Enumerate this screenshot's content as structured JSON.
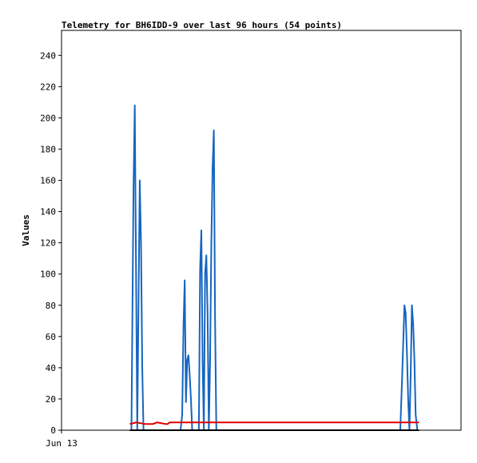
{
  "chart_data": {
    "type": "line",
    "title": "Telemetry for BH6IDD-9 over last 96 hours (54 points)",
    "xlabel": "",
    "ylabel": "Values",
    "x_tick_labels": [
      "Jun 13"
    ],
    "ylim": [
      0,
      256
    ],
    "yticks": [
      0,
      20,
      40,
      60,
      80,
      100,
      120,
      140,
      160,
      180,
      200,
      220,
      240
    ],
    "xlim": [
      0,
      96
    ],
    "grid": false,
    "legend": "none",
    "series": [
      {
        "color": "#1565c0",
        "x": [
          16.8,
          17.3,
          17.6,
          17.9,
          18.2,
          18.5,
          18.8,
          19.1,
          19.4,
          19.7,
          20.0,
          28.6,
          29.0,
          29.3,
          29.6,
          29.9,
          30.2,
          30.5,
          30.8,
          31.1,
          31.4,
          31.7,
          32.0,
          33.0,
          33.3,
          33.6,
          33.9,
          34.2,
          34.5,
          34.8,
          35.1,
          35.4,
          35.7,
          36.0,
          36.3,
          36.6,
          36.9,
          37.2,
          37.5,
          37.8,
          81.4,
          81.8,
          82.1,
          82.4,
          82.7,
          83.0,
          83.3,
          83.6,
          83.9,
          84.2,
          84.5,
          84.8,
          85.1,
          85.5
        ],
        "y": [
          0,
          155,
          208,
          105,
          0,
          80,
          160,
          120,
          40,
          0,
          0,
          0,
          10,
          65,
          96,
          18,
          45,
          48,
          35,
          20,
          0,
          0,
          0,
          0,
          103,
          128,
          45,
          0,
          100,
          112,
          75,
          0,
          45,
          120,
          168,
          192,
          70,
          0,
          0,
          0,
          0,
          30,
          55,
          80,
          75,
          50,
          20,
          0,
          35,
          80,
          68,
          45,
          10,
          0
        ]
      },
      {
        "color": "#e00000",
        "x": [
          16.4,
          18.0,
          20.0,
          22.0,
          23.0,
          24.0,
          25.0,
          25.5,
          26.0,
          27.0,
          30.0,
          40.0,
          50.0,
          60.0,
          70.0,
          80.0,
          85.9
        ],
        "y": [
          4,
          5,
          4,
          4,
          5,
          4.5,
          4,
          4,
          5,
          5,
          5,
          5,
          5,
          5,
          5,
          5,
          5
        ]
      },
      {
        "color": "#000000",
        "x": [
          16.4,
          85.9
        ],
        "y": [
          0,
          0
        ]
      }
    ]
  }
}
